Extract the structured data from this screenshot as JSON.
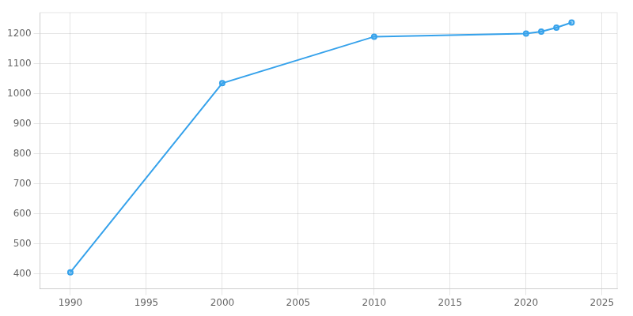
{
  "chart_data": {
    "type": "line",
    "x": [
      1990,
      2000,
      2010,
      2020,
      2021,
      2022,
      2023
    ],
    "values": [
      405,
      1035,
      1190,
      1200,
      1207,
      1220,
      1237
    ],
    "xlim": [
      1988,
      2026
    ],
    "ylim": [
      350,
      1270
    ],
    "xticks": [
      1990,
      1995,
      2000,
      2005,
      2010,
      2015,
      2020,
      2025
    ],
    "yticks": [
      400,
      500,
      600,
      700,
      800,
      900,
      1000,
      1100,
      1200
    ],
    "grid": true,
    "marker": "circle"
  }
}
